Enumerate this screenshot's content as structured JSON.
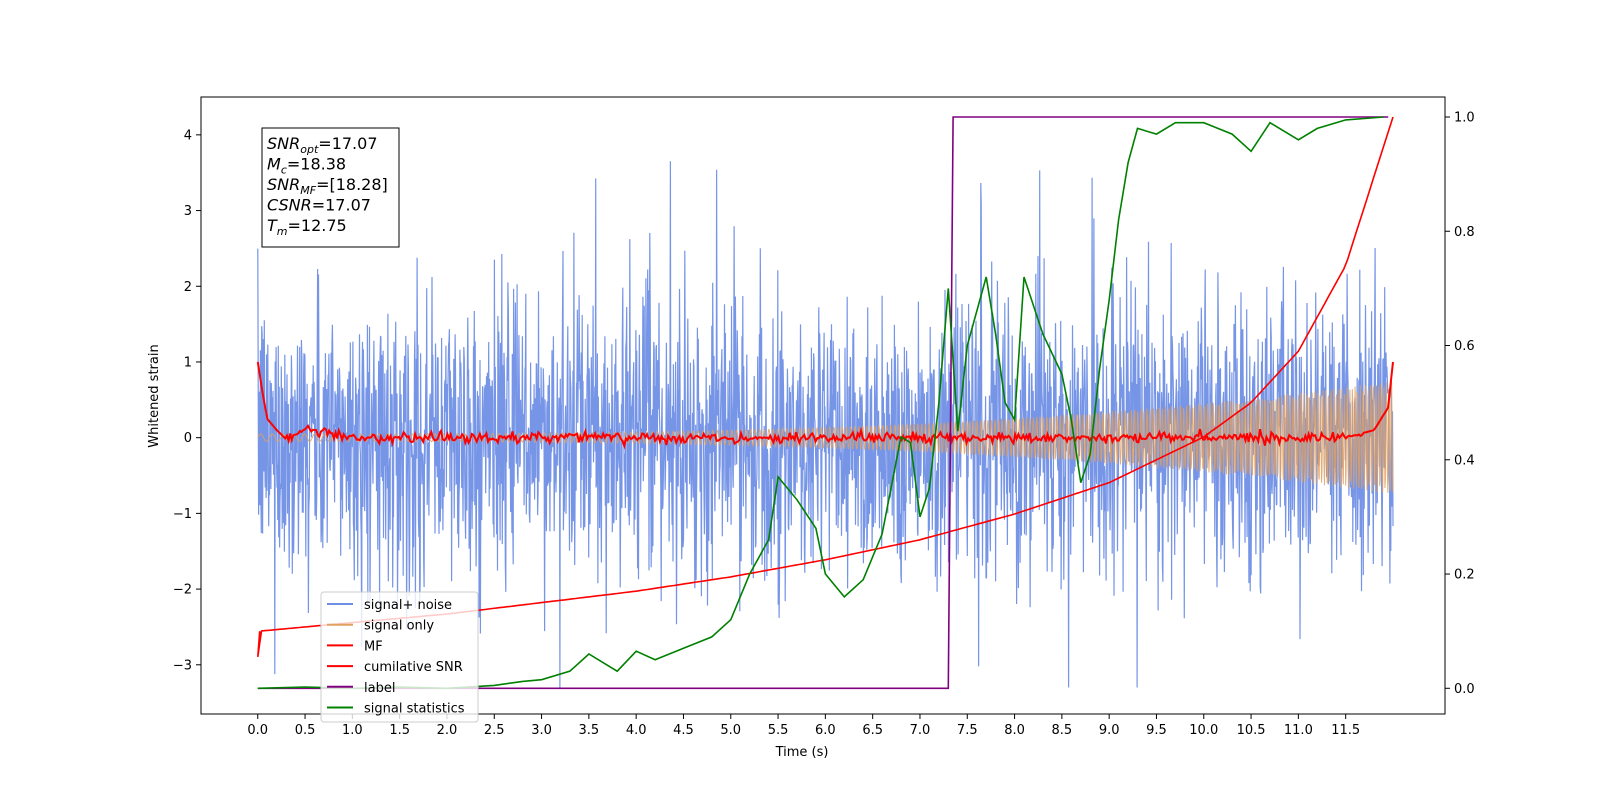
{
  "chart_data": {
    "type": "line",
    "xlabel": "Time (s)",
    "ylabel": "Whitened strain",
    "xlim": [
      -0.6,
      12.55
    ],
    "ylim": [
      -3.65,
      4.5
    ],
    "y2lim": [
      -0.045,
      1.035
    ],
    "x_ticks": [
      "0.0",
      "0.5",
      "1.0",
      "1.5",
      "2.0",
      "2.5",
      "3.0",
      "3.5",
      "4.0",
      "4.5",
      "5.0",
      "5.5",
      "6.0",
      "6.5",
      "7.0",
      "7.5",
      "8.0",
      "8.5",
      "9.0",
      "9.5",
      "10.0",
      "10.5",
      "11.0",
      "11.5"
    ],
    "y_ticks": [
      "−3",
      "−2",
      "−1",
      "0",
      "1",
      "2",
      "3",
      "4"
    ],
    "y2_ticks": [
      "0.0",
      "0.2",
      "0.4",
      "0.6",
      "0.8",
      "1.0"
    ],
    "legend_position": "lower-left",
    "series": [
      {
        "name": "signal+ noise",
        "axis": "left",
        "color": "#6f8fe6",
        "note_noise_sigma": 0.9,
        "x_range": [
          0,
          12.0
        ]
      },
      {
        "name": "signal only",
        "axis": "left",
        "color": "#e0a060",
        "amplitude_start": 0.05,
        "amplitude_end": 0.75,
        "x_range": [
          0,
          12.0
        ]
      },
      {
        "name": "MF",
        "axis": "left",
        "color": "#ff0000",
        "x": [
          0.0,
          0.05,
          0.1,
          0.2,
          0.3,
          0.5,
          1.0,
          2.0,
          4.0,
          6.0,
          8.0,
          10.0,
          11.5,
          11.8,
          11.95,
          12.0
        ],
        "y": [
          1.0,
          0.6,
          0.25,
          0.1,
          -0.02,
          0.12,
          0.0,
          0.0,
          0.0,
          0.0,
          0.0,
          0.0,
          0.0,
          0.1,
          0.4,
          1.0
        ]
      },
      {
        "name": "cumilative SNR",
        "axis": "right",
        "color": "#ff0000",
        "x": [
          0.0,
          0.02,
          1,
          2,
          3,
          4,
          5,
          6,
          7,
          8,
          9,
          10,
          10.5,
          11,
          11.5,
          12.0
        ],
        "y": [
          0.055,
          0.1,
          0.115,
          0.13,
          0.15,
          0.17,
          0.195,
          0.225,
          0.26,
          0.305,
          0.36,
          0.44,
          0.5,
          0.59,
          0.74,
          1.0
        ]
      },
      {
        "name": "label",
        "axis": "right",
        "color": "#800080",
        "x": [
          0.0,
          7.3,
          7.35,
          11.95
        ],
        "y": [
          0.0,
          0.0,
          1.0,
          1.0
        ]
      },
      {
        "name": "signal statistics",
        "axis": "right",
        "color": "#008000",
        "x": [
          0.0,
          0.5,
          1.0,
          1.5,
          2.0,
          2.5,
          2.8,
          3.0,
          3.3,
          3.5,
          3.8,
          4.0,
          4.2,
          4.5,
          4.8,
          5.0,
          5.2,
          5.4,
          5.5,
          5.7,
          5.9,
          6.0,
          6.2,
          6.4,
          6.6,
          6.8,
          6.9,
          7.0,
          7.1,
          7.2,
          7.3,
          7.4,
          7.5,
          7.7,
          7.8,
          7.9,
          8.0,
          8.1,
          8.3,
          8.5,
          8.6,
          8.7,
          8.8,
          8.9,
          9.0,
          9.1,
          9.2,
          9.3,
          9.5,
          9.7,
          10.0,
          10.3,
          10.5,
          10.7,
          11.0,
          11.2,
          11.5,
          11.9
        ],
        "y": [
          0.0,
          0.002,
          0.0,
          0.002,
          0.0,
          0.005,
          0.012,
          0.015,
          0.03,
          0.06,
          0.03,
          0.065,
          0.05,
          0.07,
          0.09,
          0.12,
          0.2,
          0.26,
          0.37,
          0.33,
          0.28,
          0.2,
          0.16,
          0.19,
          0.27,
          0.44,
          0.43,
          0.3,
          0.35,
          0.5,
          0.7,
          0.45,
          0.6,
          0.72,
          0.62,
          0.5,
          0.47,
          0.72,
          0.62,
          0.55,
          0.47,
          0.36,
          0.41,
          0.56,
          0.68,
          0.82,
          0.92,
          0.98,
          0.97,
          0.99,
          0.99,
          0.97,
          0.94,
          0.99,
          0.96,
          0.98,
          0.995,
          1.0
        ]
      }
    ],
    "annotation": {
      "lines": [
        {
          "base": "SNR",
          "sub": "opt",
          "value": "=17.07"
        },
        {
          "base": "M",
          "sub": "c",
          "value": "=18.38"
        },
        {
          "base": "SNR",
          "sub": "MF",
          "value": "=[18.28]"
        },
        {
          "base": "CSNR",
          "sub": "",
          "value": "=17.07"
        },
        {
          "base": "T",
          "sub": "m",
          "value": "=12.75"
        }
      ]
    }
  }
}
